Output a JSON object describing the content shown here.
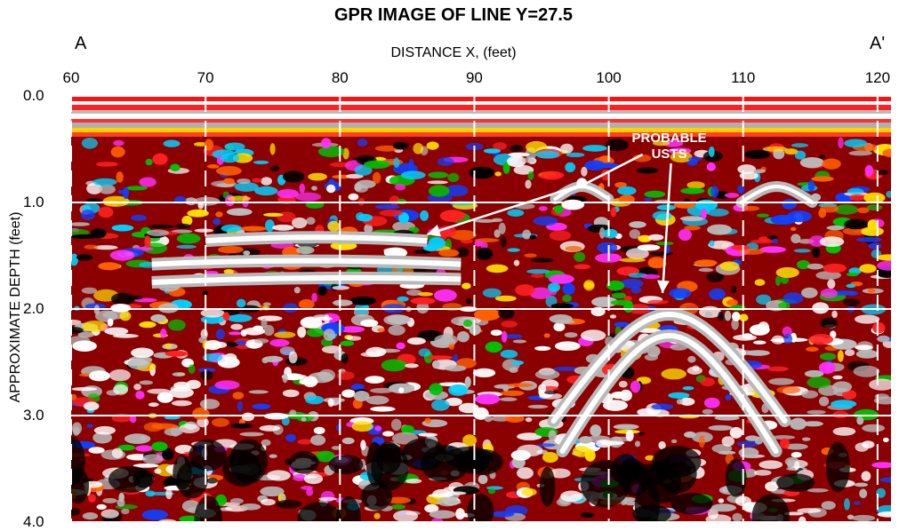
{
  "chart_data": {
    "type": "heatmap",
    "title": "GPR IMAGE OF LINE Y=27.5",
    "xlabel": "DISTANCE X, (feet)",
    "ylabel": "APPROXIMATE DEPTH (feet)",
    "corner_left": "A",
    "corner_right": "A'",
    "xlim": [
      60,
      121
    ],
    "ylim": [
      0.0,
      4.0
    ],
    "x_ticks": [
      "60",
      "70",
      "80",
      "90",
      "100",
      "110",
      "120"
    ],
    "y_ticks": [
      "0.0",
      "1.0",
      "2.0",
      "3.0",
      "4.0"
    ],
    "gridlines": true,
    "annotation": {
      "text_line1": "PROBABLE",
      "text_line2": "USTS",
      "targets": [
        {
          "x": 86.5,
          "y": 1.3
        },
        {
          "x": 104.0,
          "y": 1.85
        }
      ],
      "hyperbola_apex": {
        "x": 98.0,
        "y": 0.82
      }
    }
  }
}
